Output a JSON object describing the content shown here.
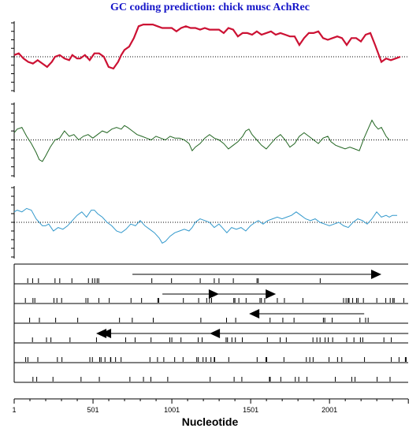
{
  "chart_data": {
    "type": "line",
    "title": "GC coding prediction: chick musc AchRec",
    "xlabel": "Nucleotide",
    "xlim": [
      1,
      2500
    ],
    "x_ticks": [
      1,
      501,
      1001,
      1501,
      2001
    ],
    "series": [
      {
        "color": "#cc1133",
        "points": [
          [
            1,
            0.05
          ],
          [
            30,
            0.1
          ],
          [
            60,
            -0.05
          ],
          [
            90,
            -0.15
          ],
          [
            120,
            -0.2
          ],
          [
            150,
            -0.1
          ],
          [
            180,
            -0.2
          ],
          [
            210,
            -0.3
          ],
          [
            240,
            -0.15
          ],
          [
            260,
            0.0
          ],
          [
            290,
            0.05
          ],
          [
            320,
            -0.05
          ],
          [
            350,
            -0.1
          ],
          [
            370,
            0.05
          ],
          [
            400,
            -0.05
          ],
          [
            420,
            -0.05
          ],
          [
            450,
            0.05
          ],
          [
            480,
            -0.1
          ],
          [
            510,
            0.1
          ],
          [
            540,
            0.1
          ],
          [
            570,
            0.0
          ],
          [
            600,
            -0.3
          ],
          [
            630,
            -0.35
          ],
          [
            660,
            -0.15
          ],
          [
            680,
            0.05
          ],
          [
            700,
            0.2
          ],
          [
            730,
            0.3
          ],
          [
            760,
            0.55
          ],
          [
            790,
            0.9
          ],
          [
            820,
            0.95
          ],
          [
            850,
            0.95
          ],
          [
            880,
            0.95
          ],
          [
            910,
            0.9
          ],
          [
            940,
            0.85
          ],
          [
            970,
            0.85
          ],
          [
            1000,
            0.85
          ],
          [
            1030,
            0.75
          ],
          [
            1060,
            0.85
          ],
          [
            1090,
            0.9
          ],
          [
            1120,
            0.85
          ],
          [
            1150,
            0.85
          ],
          [
            1180,
            0.8
          ],
          [
            1210,
            0.85
          ],
          [
            1240,
            0.8
          ],
          [
            1270,
            0.8
          ],
          [
            1300,
            0.8
          ],
          [
            1330,
            0.7
          ],
          [
            1360,
            0.85
          ],
          [
            1390,
            0.8
          ],
          [
            1420,
            0.6
          ],
          [
            1450,
            0.7
          ],
          [
            1480,
            0.7
          ],
          [
            1510,
            0.65
          ],
          [
            1540,
            0.75
          ],
          [
            1570,
            0.65
          ],
          [
            1600,
            0.7
          ],
          [
            1630,
            0.75
          ],
          [
            1660,
            0.65
          ],
          [
            1690,
            0.7
          ],
          [
            1720,
            0.65
          ],
          [
            1750,
            0.6
          ],
          [
            1780,
            0.6
          ],
          [
            1810,
            0.35
          ],
          [
            1840,
            0.55
          ],
          [
            1870,
            0.7
          ],
          [
            1900,
            0.7
          ],
          [
            1930,
            0.75
          ],
          [
            1960,
            0.55
          ],
          [
            1990,
            0.5
          ],
          [
            2020,
            0.55
          ],
          [
            2050,
            0.6
          ],
          [
            2080,
            0.55
          ],
          [
            2110,
            0.35
          ],
          [
            2140,
            0.55
          ],
          [
            2170,
            0.55
          ],
          [
            2200,
            0.45
          ],
          [
            2230,
            0.65
          ],
          [
            2260,
            0.7
          ],
          [
            2290,
            0.35
          ],
          [
            2310,
            0.1
          ],
          [
            2330,
            -0.15
          ],
          [
            2360,
            -0.05
          ],
          [
            2390,
            -0.1
          ],
          [
            2420,
            -0.05
          ],
          [
            2450,
            0.0
          ]
        ]
      },
      {
        "color": "#226622",
        "points": [
          [
            1,
            0.2
          ],
          [
            20,
            0.3
          ],
          [
            50,
            0.35
          ],
          [
            80,
            0.1
          ],
          [
            110,
            -0.1
          ],
          [
            140,
            -0.35
          ],
          [
            160,
            -0.55
          ],
          [
            180,
            -0.6
          ],
          [
            200,
            -0.45
          ],
          [
            230,
            -0.2
          ],
          [
            260,
            0.0
          ],
          [
            290,
            0.05
          ],
          [
            320,
            0.25
          ],
          [
            350,
            0.1
          ],
          [
            380,
            0.15
          ],
          [
            410,
            0.0
          ],
          [
            440,
            0.1
          ],
          [
            470,
            0.15
          ],
          [
            500,
            0.05
          ],
          [
            530,
            0.15
          ],
          [
            560,
            0.25
          ],
          [
            590,
            0.2
          ],
          [
            620,
            0.3
          ],
          [
            650,
            0.35
          ],
          [
            680,
            0.3
          ],
          [
            700,
            0.4
          ],
          [
            720,
            0.35
          ],
          [
            750,
            0.25
          ],
          [
            780,
            0.15
          ],
          [
            810,
            0.1
          ],
          [
            840,
            0.05
          ],
          [
            870,
            0.0
          ],
          [
            900,
            0.1
          ],
          [
            930,
            0.05
          ],
          [
            960,
            0.0
          ],
          [
            990,
            0.1
          ],
          [
            1020,
            0.05
          ],
          [
            1050,
            0.05
          ],
          [
            1080,
            0.0
          ],
          [
            1110,
            -0.1
          ],
          [
            1130,
            -0.3
          ],
          [
            1150,
            -0.2
          ],
          [
            1180,
            -0.1
          ],
          [
            1210,
            0.05
          ],
          [
            1240,
            0.15
          ],
          [
            1270,
            0.05
          ],
          [
            1300,
            0.0
          ],
          [
            1330,
            -0.1
          ],
          [
            1360,
            -0.25
          ],
          [
            1390,
            -0.15
          ],
          [
            1420,
            -0.05
          ],
          [
            1450,
            0.1
          ],
          [
            1470,
            0.25
          ],
          [
            1490,
            0.3
          ],
          [
            1510,
            0.15
          ],
          [
            1540,
            0.0
          ],
          [
            1570,
            -0.15
          ],
          [
            1600,
            -0.25
          ],
          [
            1630,
            -0.1
          ],
          [
            1660,
            0.05
          ],
          [
            1690,
            0.15
          ],
          [
            1720,
            0.0
          ],
          [
            1750,
            -0.2
          ],
          [
            1780,
            -0.1
          ],
          [
            1810,
            0.1
          ],
          [
            1840,
            0.2
          ],
          [
            1870,
            0.1
          ],
          [
            1900,
            0.0
          ],
          [
            1930,
            -0.1
          ],
          [
            1960,
            0.05
          ],
          [
            1990,
            0.1
          ],
          [
            2010,
            -0.05
          ],
          [
            2040,
            -0.15
          ],
          [
            2070,
            -0.2
          ],
          [
            2100,
            -0.25
          ],
          [
            2130,
            -0.2
          ],
          [
            2160,
            -0.25
          ],
          [
            2190,
            -0.3
          ],
          [
            2220,
            0.05
          ],
          [
            2250,
            0.35
          ],
          [
            2270,
            0.55
          ],
          [
            2290,
            0.4
          ],
          [
            2310,
            0.3
          ],
          [
            2330,
            0.35
          ],
          [
            2360,
            0.1
          ],
          [
            2380,
            0.0
          ]
        ]
      },
      {
        "color": "#3399cc",
        "points": [
          [
            1,
            0.3
          ],
          [
            20,
            0.35
          ],
          [
            50,
            0.3
          ],
          [
            80,
            0.4
          ],
          [
            110,
            0.35
          ],
          [
            140,
            0.1
          ],
          [
            160,
            0.0
          ],
          [
            180,
            -0.1
          ],
          [
            200,
            -0.1
          ],
          [
            220,
            -0.05
          ],
          [
            250,
            -0.25
          ],
          [
            280,
            -0.15
          ],
          [
            310,
            -0.2
          ],
          [
            340,
            -0.1
          ],
          [
            370,
            0.05
          ],
          [
            400,
            0.2
          ],
          [
            430,
            0.3
          ],
          [
            460,
            0.15
          ],
          [
            490,
            0.35
          ],
          [
            510,
            0.35
          ],
          [
            530,
            0.25
          ],
          [
            560,
            0.15
          ],
          [
            590,
            0.0
          ],
          [
            620,
            -0.1
          ],
          [
            650,
            -0.25
          ],
          [
            680,
            -0.3
          ],
          [
            710,
            -0.2
          ],
          [
            740,
            -0.05
          ],
          [
            770,
            -0.1
          ],
          [
            800,
            0.05
          ],
          [
            830,
            -0.1
          ],
          [
            860,
            -0.2
          ],
          [
            890,
            -0.3
          ],
          [
            920,
            -0.45
          ],
          [
            940,
            -0.6
          ],
          [
            960,
            -0.55
          ],
          [
            990,
            -0.4
          ],
          [
            1020,
            -0.3
          ],
          [
            1050,
            -0.25
          ],
          [
            1080,
            -0.2
          ],
          [
            1110,
            -0.25
          ],
          [
            1130,
            -0.15
          ],
          [
            1150,
            0.0
          ],
          [
            1180,
            0.1
          ],
          [
            1210,
            0.05
          ],
          [
            1240,
            0.0
          ],
          [
            1270,
            -0.15
          ],
          [
            1300,
            -0.05
          ],
          [
            1320,
            -0.15
          ],
          [
            1350,
            -0.3
          ],
          [
            1380,
            -0.15
          ],
          [
            1410,
            -0.2
          ],
          [
            1440,
            -0.15
          ],
          [
            1470,
            -0.25
          ],
          [
            1500,
            -0.1
          ],
          [
            1530,
            0.0
          ],
          [
            1550,
            0.05
          ],
          [
            1580,
            -0.05
          ],
          [
            1610,
            0.05
          ],
          [
            1640,
            0.1
          ],
          [
            1670,
            0.15
          ],
          [
            1700,
            0.1
          ],
          [
            1730,
            0.15
          ],
          [
            1760,
            0.2
          ],
          [
            1790,
            0.3
          ],
          [
            1820,
            0.2
          ],
          [
            1850,
            0.1
          ],
          [
            1880,
            0.05
          ],
          [
            1910,
            0.1
          ],
          [
            1940,
            0.0
          ],
          [
            1970,
            -0.05
          ],
          [
            2000,
            -0.1
          ],
          [
            2030,
            -0.05
          ],
          [
            2060,
            0.0
          ],
          [
            2090,
            -0.1
          ],
          [
            2120,
            -0.15
          ],
          [
            2150,
            0.0
          ],
          [
            2180,
            0.1
          ],
          [
            2210,
            0.05
          ],
          [
            2240,
            -0.05
          ],
          [
            2270,
            0.1
          ],
          [
            2300,
            0.3
          ],
          [
            2330,
            0.15
          ],
          [
            2360,
            0.2
          ],
          [
            2380,
            0.15
          ],
          [
            2400,
            0.2
          ],
          [
            2430,
            0.2
          ]
        ]
      }
    ],
    "frames": {
      "ticks": [
        [
          87,
          118,
          155,
          260,
          290,
          367,
          472,
          497,
          512,
          527,
          537,
          874,
          999,
          1181,
          1270,
          1300,
          1391,
          1541,
          1549,
          1942
        ],
        [
          72,
          120,
          132,
          253,
          272,
          302,
          456,
          469,
          538,
          604,
          742,
          809,
          912,
          918,
          1074,
          1171,
          1222,
          1240,
          1253,
          1394,
          1401,
          1426,
          1472,
          1560,
          1569,
          1590,
          1670,
          1715,
          1832,
          2090,
          2106,
          2119,
          2125,
          2148,
          2173,
          2182,
          2216,
          2301,
          2358,
          2386,
          2403,
          2411,
          2472
        ],
        [
          99,
          161,
          264,
          404,
          669,
          750,
          883,
          1185,
          1348,
          1406,
          1624,
          1705,
          1776,
          1962,
          1971,
          2018,
          2194,
          2230,
          2246
        ],
        [
          117,
          206,
          234,
          355,
          523,
          708,
          768,
          869,
          988,
          1001,
          1059,
          1168,
          1193,
          1345,
          1354,
          1382,
          1404,
          1448,
          1607,
          1688,
          1727,
          1896,
          1921,
          1941,
          1973,
          1993,
          2021,
          2110,
          2156,
          2197,
          2212,
          2346,
          2393
        ],
        [
          74,
          88,
          151,
          275,
          304,
          481,
          497,
          543,
          552,
          577,
          612,
          614,
          644,
          679,
          862,
          910,
          950,
          1019,
          1072,
          1159,
          1169,
          1199,
          1218,
          1249,
          1270,
          1273,
          1362,
          1542,
          1598,
          1603,
          1712,
          1854,
          1876,
          1897,
          1998,
          2052,
          2079,
          2223,
          2393,
          2442,
          2482,
          2487
        ],
        [
          120,
          144,
          247,
          425,
          541,
          735,
          821,
          868,
          975,
          1244,
          1396,
          1445,
          1620,
          1625,
          1692,
          1784,
          1806,
          1858,
          2038,
          2142,
          2163,
          2303,
          2385
        ]
      ],
      "arrows": [
        {
          "frame": 0,
          "start": 751,
          "end": 2330
        },
        {
          "frame": 1,
          "start": 941,
          "end": 1300
        },
        {
          "frame": 1,
          "start": 1291,
          "end": 1661
        },
        {
          "frame": 2,
          "start": 2221,
          "end": 1491
        },
        {
          "frame": 3,
          "start": 2501,
          "end": 551
        },
        {
          "frame": 3,
          "start": 1751,
          "end": 1241
        },
        {
          "frame": 3,
          "start": 1241,
          "end": 521
        }
      ]
    }
  }
}
